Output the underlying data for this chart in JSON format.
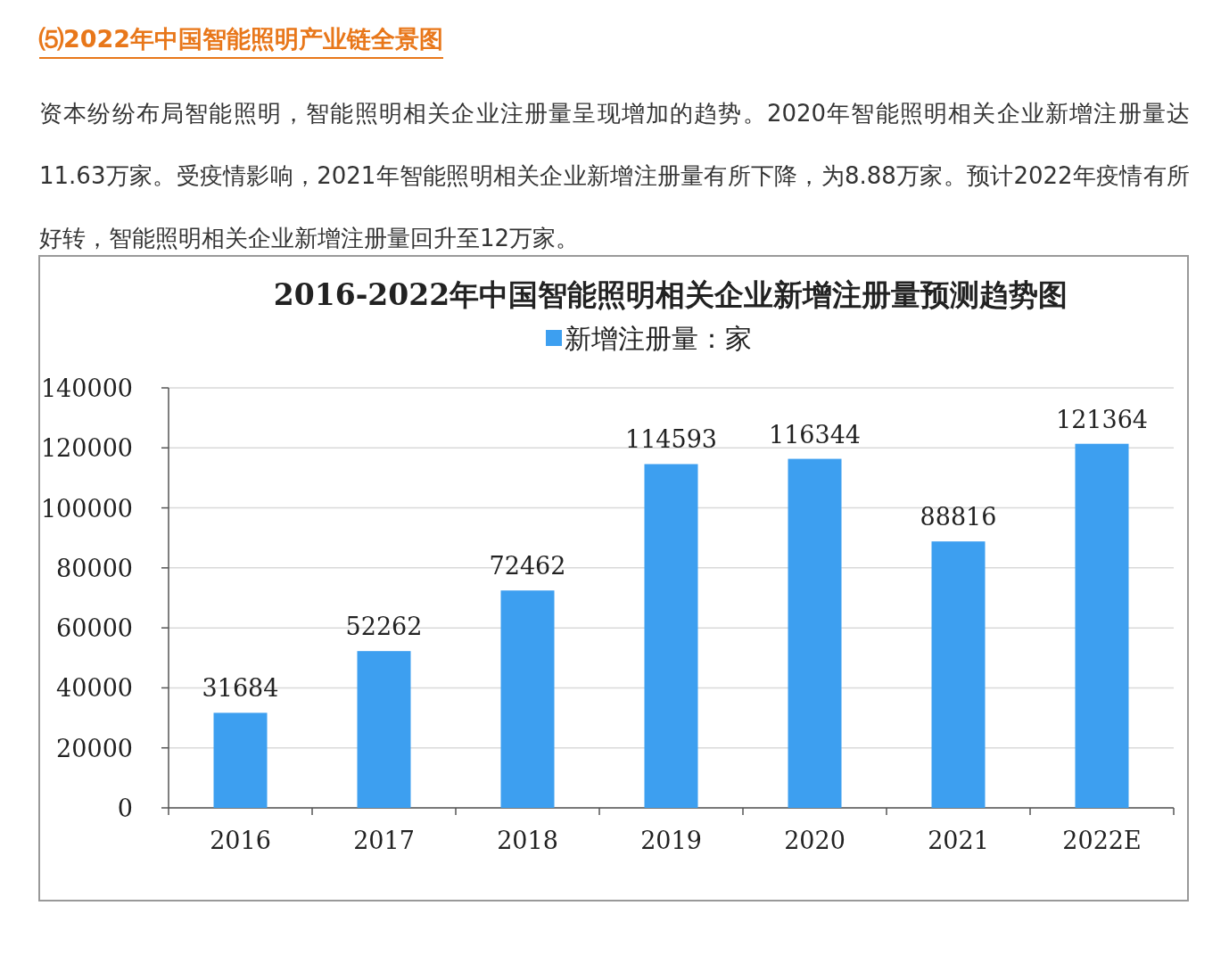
{
  "chart_data": {
    "type": "bar",
    "title": "2016-2022年中国智能照明相关企业新增注册量预测趋势图",
    "annotations": [
      "⑸2022年中国智能照明产业链全景图",
      "资本纷纷布局智能照明，智能照明相关企业注册量呈现增加的趋势。2020年智能照明相关企业新增注册量达11.63万家。受疫情影响，2021年智能照明相关企业新增注册量有所下降，为8.88万家。预计2022年疫情有所好转，智能照明相关企业新增注册量回升至12万家。"
    ],
    "categories": [
      "2016",
      "2017",
      "2018",
      "2019",
      "2020",
      "2021",
      "2022E"
    ],
    "series": [
      {
        "name": "新增注册量：家",
        "color": "#3d9ff0",
        "values": [
          31684,
          52262,
          72462,
          114593,
          116344,
          88816,
          121364
        ]
      }
    ],
    "ylim": [
      0,
      140000
    ],
    "yticks": [
      0,
      20000,
      40000,
      60000,
      80000,
      100000,
      120000,
      140000
    ],
    "grid": "y",
    "legend": "top",
    "data_labels": true
  }
}
